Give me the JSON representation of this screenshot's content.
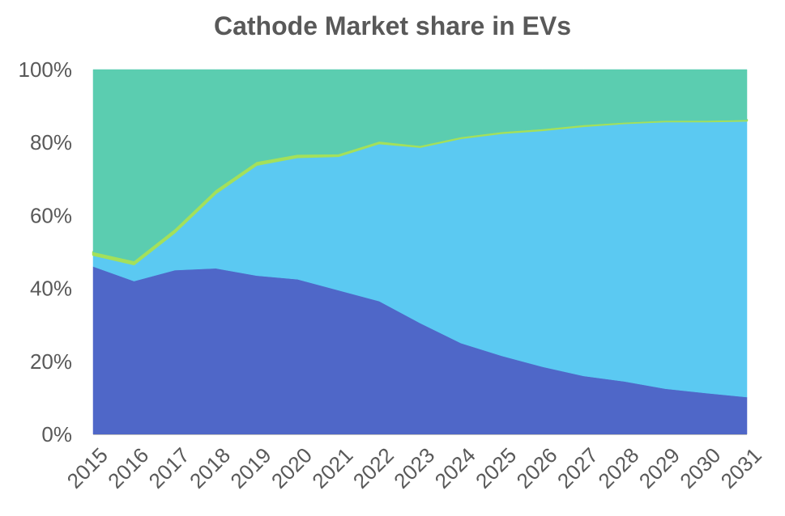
{
  "chart_data": {
    "type": "area",
    "stacked": true,
    "percent": true,
    "title": "Cathode Market share in EVs",
    "xlabel": "",
    "ylabel": "",
    "x": [
      "2015",
      "2016",
      "2017",
      "2018",
      "2019",
      "2020",
      "2021",
      "2022",
      "2023",
      "2024",
      "2025",
      "2026",
      "2027",
      "2028",
      "2029",
      "2030",
      "2031"
    ],
    "ylim": [
      0,
      100
    ],
    "yticks": [
      0,
      20,
      40,
      60,
      80,
      100
    ],
    "ytick_labels": [
      "0%",
      "20%",
      "40%",
      "60%",
      "80%",
      "100%"
    ],
    "grid": false,
    "legend": "none",
    "series": [
      {
        "color": "#4f67c8",
        "values": [
          46,
          42,
          45,
          45.5,
          43.5,
          42.5,
          39.5,
          36.5,
          30.5,
          25,
          21.5,
          18.5,
          16,
          14.5,
          12.5,
          11.3,
          10.2
        ]
      },
      {
        "color": "#5bc9f2",
        "values": [
          3.2,
          4.6,
          10.4,
          20.6,
          30.4,
          33.5,
          36.8,
          43.3,
          48.3,
          56.2,
          61.1,
          64.9,
          68.5,
          70.8,
          73.3,
          74.5,
          75.8
        ]
      },
      {
        "color": "#a4e05a",
        "values": [
          0.8,
          0.9,
          0.9,
          0.9,
          0.8,
          0.7,
          0.5,
          0.5,
          0.3,
          0.3,
          0.3,
          0.3,
          0.3,
          0.2,
          0.2,
          0.2,
          0.2
        ]
      },
      {
        "color": "#5bcdb0",
        "values": [
          50,
          52.5,
          43.7,
          33,
          25.3,
          23.3,
          23.2,
          19.7,
          20.9,
          18.5,
          17.1,
          16.3,
          15.2,
          14.5,
          14,
          14,
          13.8
        ]
      }
    ]
  },
  "colors": {
    "axis_text": "#595959",
    "axis_line": "#bfbfbf"
  }
}
